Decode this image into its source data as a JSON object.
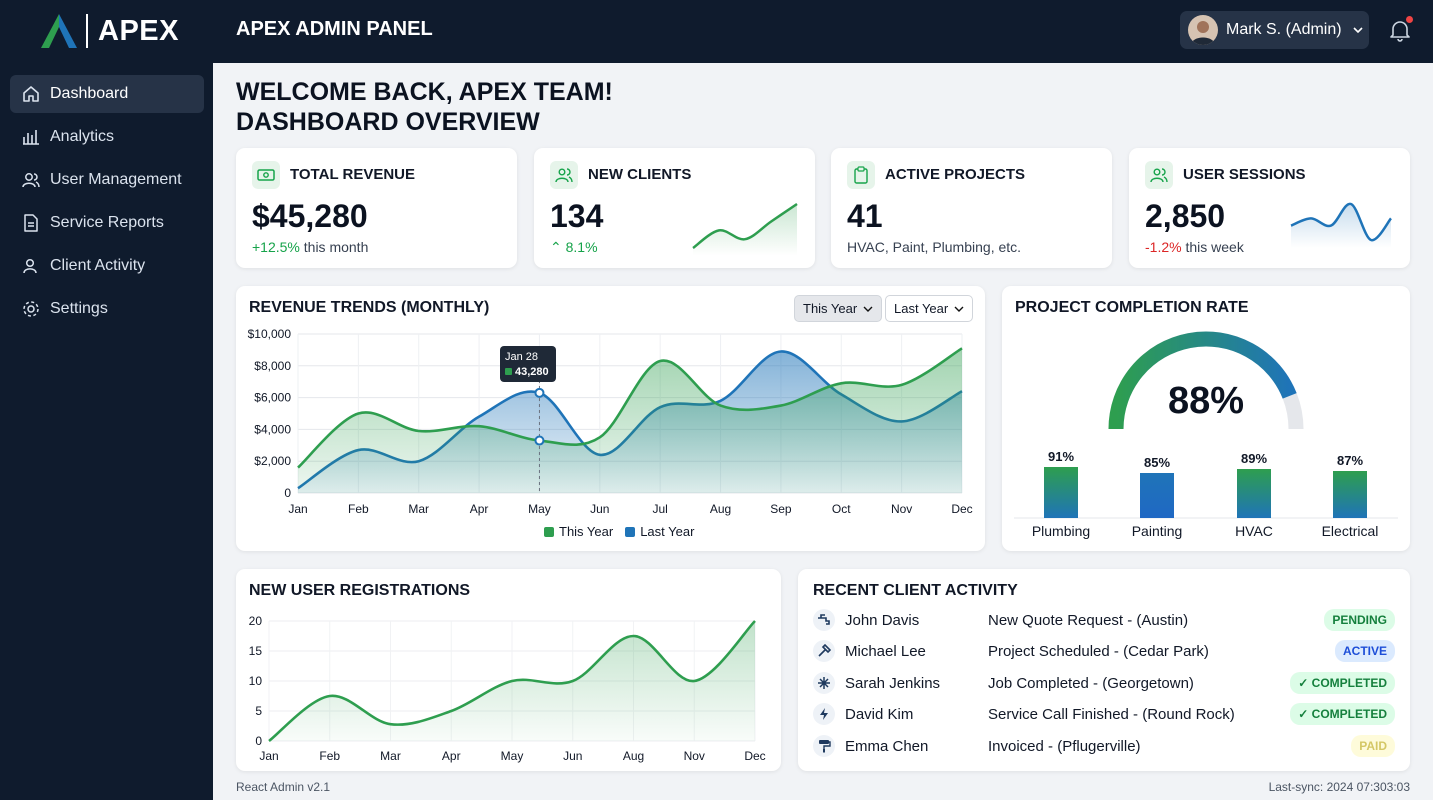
{
  "brand": {
    "name": "APEX"
  },
  "topbar": {
    "title": "APEX ADMIN PANEL",
    "user": "Mark S. (Admin)"
  },
  "sidebar": {
    "items": [
      {
        "label": "Dashboard",
        "icon": "home-icon",
        "active": true
      },
      {
        "label": "Analytics",
        "icon": "bar-chart-icon"
      },
      {
        "label": "User Management",
        "icon": "users-icon"
      },
      {
        "label": "Service Reports",
        "icon": "document-icon"
      },
      {
        "label": "Client Activity",
        "icon": "user-icon"
      },
      {
        "label": "Settings",
        "icon": "gear-icon"
      }
    ]
  },
  "welcome": {
    "line1": "WELCOME BACK, APEX TEAM!",
    "line2": "DASHBOARD OVERVIEW"
  },
  "kpis": [
    {
      "title": "TOTAL REVENUE",
      "value": "$45,280",
      "change": "+12.5%",
      "change_suffix": " this month",
      "icon": "money-icon"
    },
    {
      "title": "NEW CLIENTS",
      "value": "134",
      "change": "8.1%",
      "icon": "users-icon"
    },
    {
      "title": "ACTIVE PROJECTS",
      "value": "41",
      "sub": "HVAC, Paint, Plumbing, etc.",
      "icon": "clipboard-icon"
    },
    {
      "title": "USER SESSIONS",
      "value": "2,850",
      "change": "-1.2%",
      "change_suffix": " this week",
      "icon": "users-icon"
    }
  ],
  "revenue": {
    "title": "REVENUE TRENDS (MONTHLY)",
    "filters": [
      "This Year",
      "Last Year"
    ],
    "tooltip": {
      "date": "Jan 28",
      "value": "43,280"
    }
  },
  "completion": {
    "title": "PROJECT COMPLETION RATE",
    "rate_label": "88%"
  },
  "registrations": {
    "title": "NEW USER REGISTRATIONS"
  },
  "activity": {
    "title": "RECENT CLIENT ACTIVITY",
    "rows": [
      {
        "name": "John Davis",
        "desc": "New Quote Request - (Austin)",
        "status": "PENDING",
        "icon": "faucet-icon"
      },
      {
        "name": "Michael Lee",
        "desc": "Project Scheduled - (Cedar Park)",
        "status": "ACTIVE",
        "icon": "hammer-icon"
      },
      {
        "name": "Sarah Jenkins",
        "desc": "Job Completed - (Georgetown)",
        "status": "✓ COMPLETED",
        "icon": "snowflake-icon"
      },
      {
        "name": "David Kim",
        "desc": "Service Call Finished - (Round Rock)",
        "status": "✓ COMPLETED",
        "icon": "bolt-icon"
      },
      {
        "name": "Emma Chen",
        "desc": "Invoiced - (Pflugerville)",
        "status": "PAID",
        "icon": "paint-roller-icon"
      }
    ]
  },
  "footer": {
    "version": "React Admin v2.1",
    "sync": "Last-sync: 2024 07:303:03"
  },
  "colors": {
    "green": "#2e9e4f",
    "blue": "#1f74b8",
    "sidebar": "#0f1b2d"
  },
  "chart_data": [
    {
      "type": "line",
      "title": "USER SESSIONS sparkline",
      "values": [
        5,
        6,
        5,
        8,
        3,
        6
      ]
    },
    {
      "type": "line",
      "title": "NEW CLIENTS sparkline",
      "values": [
        2,
        4,
        3,
        5,
        7
      ]
    },
    {
      "type": "area",
      "title": "REVENUE TRENDS (MONTHLY)",
      "categories": [
        "Jan",
        "Feb",
        "Mar",
        "Apr",
        "May",
        "Jun",
        "Jul",
        "Aug",
        "Sep",
        "Oct",
        "Nov",
        "Dec"
      ],
      "series": [
        {
          "name": "This Year",
          "values": [
            1600,
            5000,
            3900,
            4200,
            3300,
            3500,
            8300,
            5500,
            5500,
            6900,
            6800,
            9100
          ]
        },
        {
          "name": "Last Year",
          "values": [
            300,
            2700,
            2000,
            4800,
            6300,
            2400,
            5400,
            5800,
            8900,
            6200,
            4500,
            6400
          ]
        }
      ],
      "ylim": [
        0,
        10000
      ],
      "yticks": [
        "0",
        "$2,000",
        "$4,000",
        "$6,000",
        "$8,000",
        "$10,000"
      ],
      "grid": true,
      "legend": "bottom"
    },
    {
      "type": "bar",
      "title": "PROJECT COMPLETION RATE",
      "categories": [
        "Plumbing",
        "Painting",
        "HVAC",
        "Electrical"
      ],
      "values": [
        91,
        85,
        89,
        87
      ],
      "labels": [
        "91%",
        "85%",
        "89%",
        "87%"
      ],
      "gauge_value": 88
    },
    {
      "type": "area",
      "title": "NEW USER REGISTRATIONS",
      "categories": [
        "Jan",
        "Feb",
        "Mar",
        "Apr",
        "May",
        "Jun",
        "Aug",
        "Nov",
        "Dec"
      ],
      "values": [
        0,
        7.5,
        2.8,
        5,
        10,
        10,
        17.5,
        10,
        20
      ],
      "ylim": [
        0,
        20
      ],
      "yticks": [
        "0",
        "5",
        "10",
        "15",
        "20"
      ],
      "grid": true
    }
  ]
}
